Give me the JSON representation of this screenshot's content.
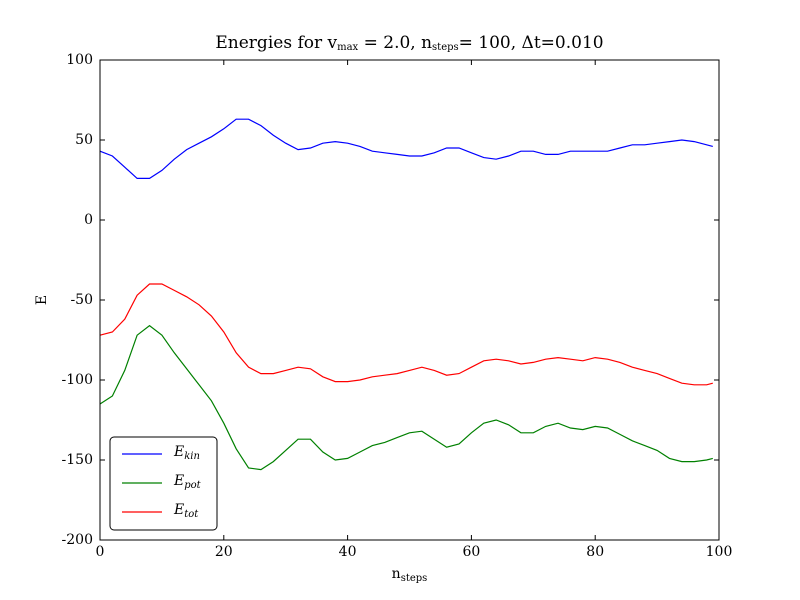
{
  "chart_data": {
    "type": "line",
    "title": [
      "Energies for v",
      "max",
      " = 2.0, n",
      "steps",
      "= 100, Δt=0.010"
    ],
    "xlabel": [
      "n",
      "steps"
    ],
    "ylabel": "E",
    "x": [
      0,
      2,
      4,
      6,
      8,
      10,
      12,
      14,
      16,
      18,
      20,
      22,
      24,
      26,
      28,
      30,
      32,
      34,
      36,
      38,
      40,
      42,
      44,
      46,
      48,
      50,
      52,
      54,
      56,
      58,
      60,
      62,
      64,
      66,
      68,
      70,
      72,
      74,
      76,
      78,
      80,
      82,
      84,
      86,
      88,
      90,
      92,
      94,
      96,
      98,
      99
    ],
    "series": [
      {
        "name": [
          "E",
          "kin"
        ],
        "color": "#0000ff",
        "values": [
          43,
          40,
          33,
          26,
          26,
          31,
          38,
          44,
          48,
          52,
          57,
          63,
          63,
          59,
          53,
          48,
          44,
          45,
          48,
          49,
          48,
          46,
          43,
          42,
          41,
          40,
          40,
          42,
          45,
          45,
          42,
          39,
          38,
          40,
          43,
          43,
          41,
          41,
          43,
          43,
          43,
          43,
          45,
          47,
          47,
          48,
          49,
          50,
          49,
          47,
          46
        ]
      },
      {
        "name": [
          "E",
          "pot"
        ],
        "color": "#008000",
        "values": [
          -115,
          -110,
          -94,
          -72,
          -66,
          -72,
          -83,
          -93,
          -103,
          -113,
          -127,
          -143,
          -155,
          -156,
          -151,
          -144,
          -137,
          -137,
          -145,
          -150,
          -149,
          -145,
          -141,
          -139,
          -136,
          -133,
          -132,
          -137,
          -142,
          -140,
          -133,
          -127,
          -125,
          -128,
          -133,
          -133,
          -129,
          -127,
          -130,
          -131,
          -129,
          -130,
          -134,
          -138,
          -141,
          -144,
          -149,
          -151,
          -151,
          -150,
          -149
        ]
      },
      {
        "name": [
          "E",
          "tot"
        ],
        "color": "#ff0000",
        "values": [
          -72,
          -70,
          -62,
          -47,
          -40,
          -40,
          -44,
          -48,
          -53,
          -60,
          -70,
          -83,
          -92,
          -96,
          -96,
          -94,
          -92,
          -93,
          -98,
          -101,
          -101,
          -100,
          -98,
          -97,
          -96,
          -94,
          -92,
          -94,
          -97,
          -96,
          -92,
          -88,
          -87,
          -88,
          -90,
          -89,
          -87,
          -86,
          -87,
          -88,
          -86,
          -87,
          -89,
          -92,
          -94,
          -96,
          -99,
          -102,
          -103,
          -103,
          -102
        ]
      }
    ],
    "xlim": [
      0,
      100
    ],
    "xticks": [
      0,
      20,
      40,
      60,
      80,
      100
    ],
    "ylim": [
      -200,
      100
    ],
    "yticks": [
      -200,
      -150,
      -100,
      -50,
      0,
      50,
      100
    ],
    "legend": "lower left"
  }
}
